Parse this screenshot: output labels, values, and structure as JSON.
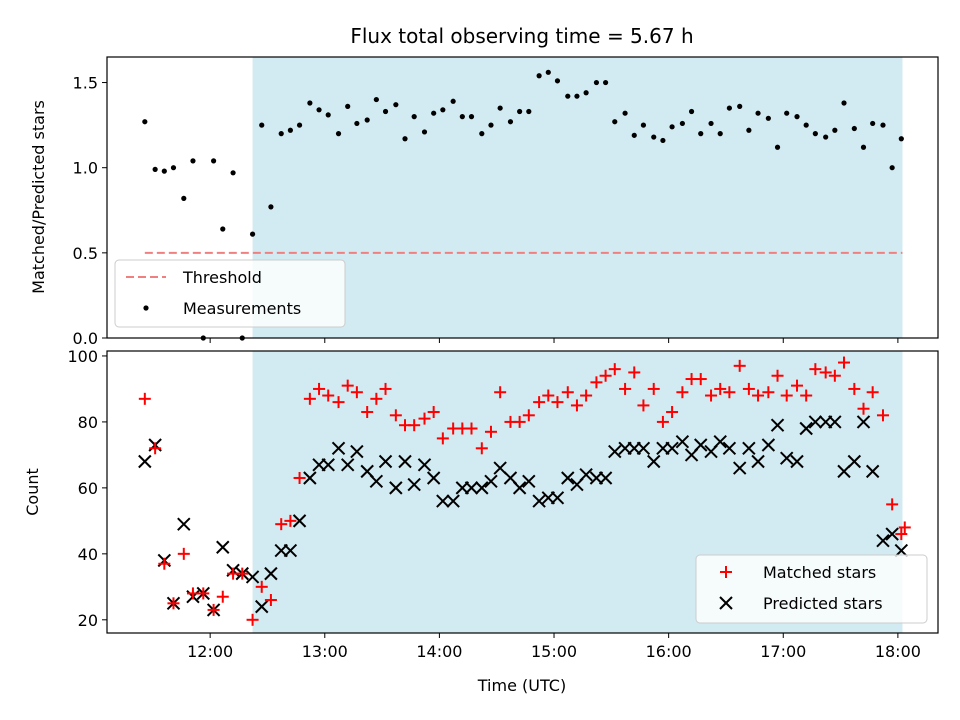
{
  "title": "Flux total observing time = 5.67 h",
  "colors": {
    "shade": "#add8e6",
    "measurement": "#000000",
    "threshold": "#f08080",
    "matched": "#ff0000",
    "predicted": "#000000"
  },
  "chart_data": [
    {
      "type": "scatter",
      "panel": "top",
      "xlabel": "",
      "ylabel": "Matched/Predicted stars",
      "xlim": [
        11.1,
        18.35
      ],
      "ylim": [
        0,
        1.65
      ],
      "yticks": [
        0.0,
        0.5,
        1.0,
        1.5
      ],
      "ytick_labels": [
        "0.0",
        "0.5",
        "1.0",
        "1.5"
      ],
      "xticks": [
        12,
        13,
        14,
        15,
        16,
        17,
        18
      ],
      "shaded_span": [
        12.37,
        18.04
      ],
      "threshold": {
        "name": "Threshold",
        "y": 0.5,
        "x": [
          11.43,
          18.04
        ]
      },
      "legend": [
        "Threshold",
        "Measurements"
      ],
      "legend_loc": "lower left",
      "series": [
        {
          "name": "Measurements",
          "points": [
            [
              11.43,
              1.27
            ],
            [
              11.52,
              0.99
            ],
            [
              11.6,
              0.98
            ],
            [
              11.68,
              1.0
            ],
            [
              11.77,
              0.82
            ],
            [
              11.85,
              1.04
            ],
            [
              11.94,
              0.0
            ],
            [
              12.03,
              1.04
            ],
            [
              12.11,
              0.64
            ],
            [
              12.2,
              0.97
            ],
            [
              12.28,
              0.0
            ],
            [
              12.37,
              0.61
            ],
            [
              12.45,
              1.25
            ],
            [
              12.53,
              0.77
            ],
            [
              12.62,
              1.2
            ],
            [
              12.7,
              1.22
            ],
            [
              12.78,
              1.25
            ],
            [
              12.87,
              1.38
            ],
            [
              12.95,
              1.34
            ],
            [
              13.03,
              1.31
            ],
            [
              13.12,
              1.2
            ],
            [
              13.2,
              1.36
            ],
            [
              13.28,
              1.26
            ],
            [
              13.37,
              1.28
            ],
            [
              13.45,
              1.4
            ],
            [
              13.53,
              1.33
            ],
            [
              13.62,
              1.37
            ],
            [
              13.7,
              1.17
            ],
            [
              13.78,
              1.3
            ],
            [
              13.87,
              1.21
            ],
            [
              13.95,
              1.32
            ],
            [
              14.03,
              1.34
            ],
            [
              14.12,
              1.39
            ],
            [
              14.2,
              1.3
            ],
            [
              14.28,
              1.3
            ],
            [
              14.37,
              1.2
            ],
            [
              14.45,
              1.25
            ],
            [
              14.53,
              1.35
            ],
            [
              14.62,
              1.27
            ],
            [
              14.7,
              1.33
            ],
            [
              14.78,
              1.33
            ],
            [
              14.87,
              1.54
            ],
            [
              14.95,
              1.56
            ],
            [
              15.03,
              1.51
            ],
            [
              15.12,
              1.42
            ],
            [
              15.2,
              1.42
            ],
            [
              15.28,
              1.44
            ],
            [
              15.37,
              1.5
            ],
            [
              15.45,
              1.5
            ],
            [
              15.53,
              1.27
            ],
            [
              15.62,
              1.32
            ],
            [
              15.7,
              1.19
            ],
            [
              15.78,
              1.25
            ],
            [
              15.87,
              1.18
            ],
            [
              15.95,
              1.16
            ],
            [
              16.03,
              1.24
            ],
            [
              16.12,
              1.26
            ],
            [
              16.2,
              1.33
            ],
            [
              16.28,
              1.2
            ],
            [
              16.37,
              1.26
            ],
            [
              16.45,
              1.2
            ],
            [
              16.53,
              1.35
            ],
            [
              16.62,
              1.36
            ],
            [
              16.7,
              1.22
            ],
            [
              16.78,
              1.32
            ],
            [
              16.87,
              1.29
            ],
            [
              16.95,
              1.12
            ],
            [
              17.03,
              1.32
            ],
            [
              17.12,
              1.3
            ],
            [
              17.2,
              1.25
            ],
            [
              17.28,
              1.2
            ],
            [
              17.37,
              1.18
            ],
            [
              17.45,
              1.22
            ],
            [
              17.53,
              1.38
            ],
            [
              17.62,
              1.23
            ],
            [
              17.7,
              1.12
            ],
            [
              17.78,
              1.26
            ],
            [
              17.87,
              1.25
            ],
            [
              17.95,
              1.0
            ],
            [
              18.03,
              1.17
            ]
          ]
        }
      ]
    },
    {
      "type": "scatter",
      "panel": "bottom",
      "xlabel": "Time (UTC)",
      "ylabel": "Count",
      "xlim": [
        11.1,
        18.35
      ],
      "ylim": [
        16,
        101.5
      ],
      "yticks": [
        20,
        40,
        60,
        80,
        100
      ],
      "ytick_labels": [
        "20",
        "40",
        "60",
        "80",
        "100"
      ],
      "xticks": [
        12,
        13,
        14,
        15,
        16,
        17,
        18
      ],
      "xtick_labels": [
        "12:00",
        "13:00",
        "14:00",
        "15:00",
        "16:00",
        "17:00",
        "18:00"
      ],
      "shaded_span": [
        12.37,
        18.04
      ],
      "legend": [
        "Matched stars",
        "Predicted stars"
      ],
      "legend_loc": "lower right",
      "x": [
        11.43,
        11.52,
        11.6,
        11.68,
        11.77,
        11.85,
        11.94,
        12.03,
        12.11,
        12.2,
        12.28,
        12.37,
        12.45,
        12.53,
        12.62,
        12.7,
        12.78,
        12.87,
        12.95,
        13.03,
        13.12,
        13.2,
        13.28,
        13.37,
        13.45,
        13.53,
        13.62,
        13.7,
        13.78,
        13.87,
        13.95,
        14.03,
        14.12,
        14.2,
        14.28,
        14.37,
        14.45,
        14.53,
        14.62,
        14.7,
        14.78,
        14.87,
        14.95,
        15.03,
        15.12,
        15.2,
        15.28,
        15.37,
        15.45,
        15.53,
        15.62,
        15.7,
        15.78,
        15.87,
        15.95,
        16.03,
        16.12,
        16.2,
        16.28,
        16.37,
        16.45,
        16.53,
        16.62,
        16.7,
        16.78,
        16.87,
        16.95,
        17.03,
        17.12,
        17.2,
        17.28,
        17.37,
        17.45,
        17.53,
        17.62,
        17.7,
        17.78,
        17.87,
        17.95,
        18.03
      ],
      "series": [
        {
          "name": "Matched stars",
          "marker": "plus",
          "values": [
            87,
            72,
            37,
            25,
            40,
            28,
            28,
            23,
            27,
            34,
            34,
            20,
            30,
            26,
            49,
            50,
            63,
            87,
            90,
            88,
            86,
            91,
            89,
            83,
            87,
            90,
            82,
            79,
            79,
            81,
            83,
            75,
            78,
            78,
            78,
            72,
            77,
            89,
            80,
            80,
            82,
            86,
            88,
            86,
            89,
            85,
            88,
            92,
            94,
            96,
            90,
            95,
            85,
            90,
            80,
            83,
            89,
            93,
            93,
            88,
            90,
            89,
            97,
            90,
            88,
            89,
            94,
            88,
            91,
            88,
            96,
            95,
            94,
            98,
            90,
            84,
            89,
            82,
            55,
            46
          ],
          "extra_points": [
            [
              18.06,
              48
            ]
          ]
        },
        {
          "name": "Predicted stars",
          "marker": "x",
          "values": [
            68,
            73,
            38,
            25,
            49,
            27,
            28,
            23,
            42,
            35,
            34,
            33,
            24,
            34,
            41,
            41,
            50,
            63,
            67,
            67,
            72,
            67,
            71,
            65,
            62,
            68,
            60,
            68,
            61,
            67,
            63,
            56,
            56,
            60,
            60,
            60,
            62,
            66,
            63,
            60,
            62,
            56,
            57,
            57,
            63,
            61,
            64,
            63,
            63,
            71,
            72,
            72,
            72,
            68,
            72,
            72,
            74,
            70,
            73,
            71,
            74,
            72,
            66,
            72,
            68,
            73,
            79,
            69,
            68,
            78,
            80,
            80,
            80,
            65,
            68,
            80,
            65,
            44,
            46,
            41
          ]
        }
      ]
    }
  ]
}
